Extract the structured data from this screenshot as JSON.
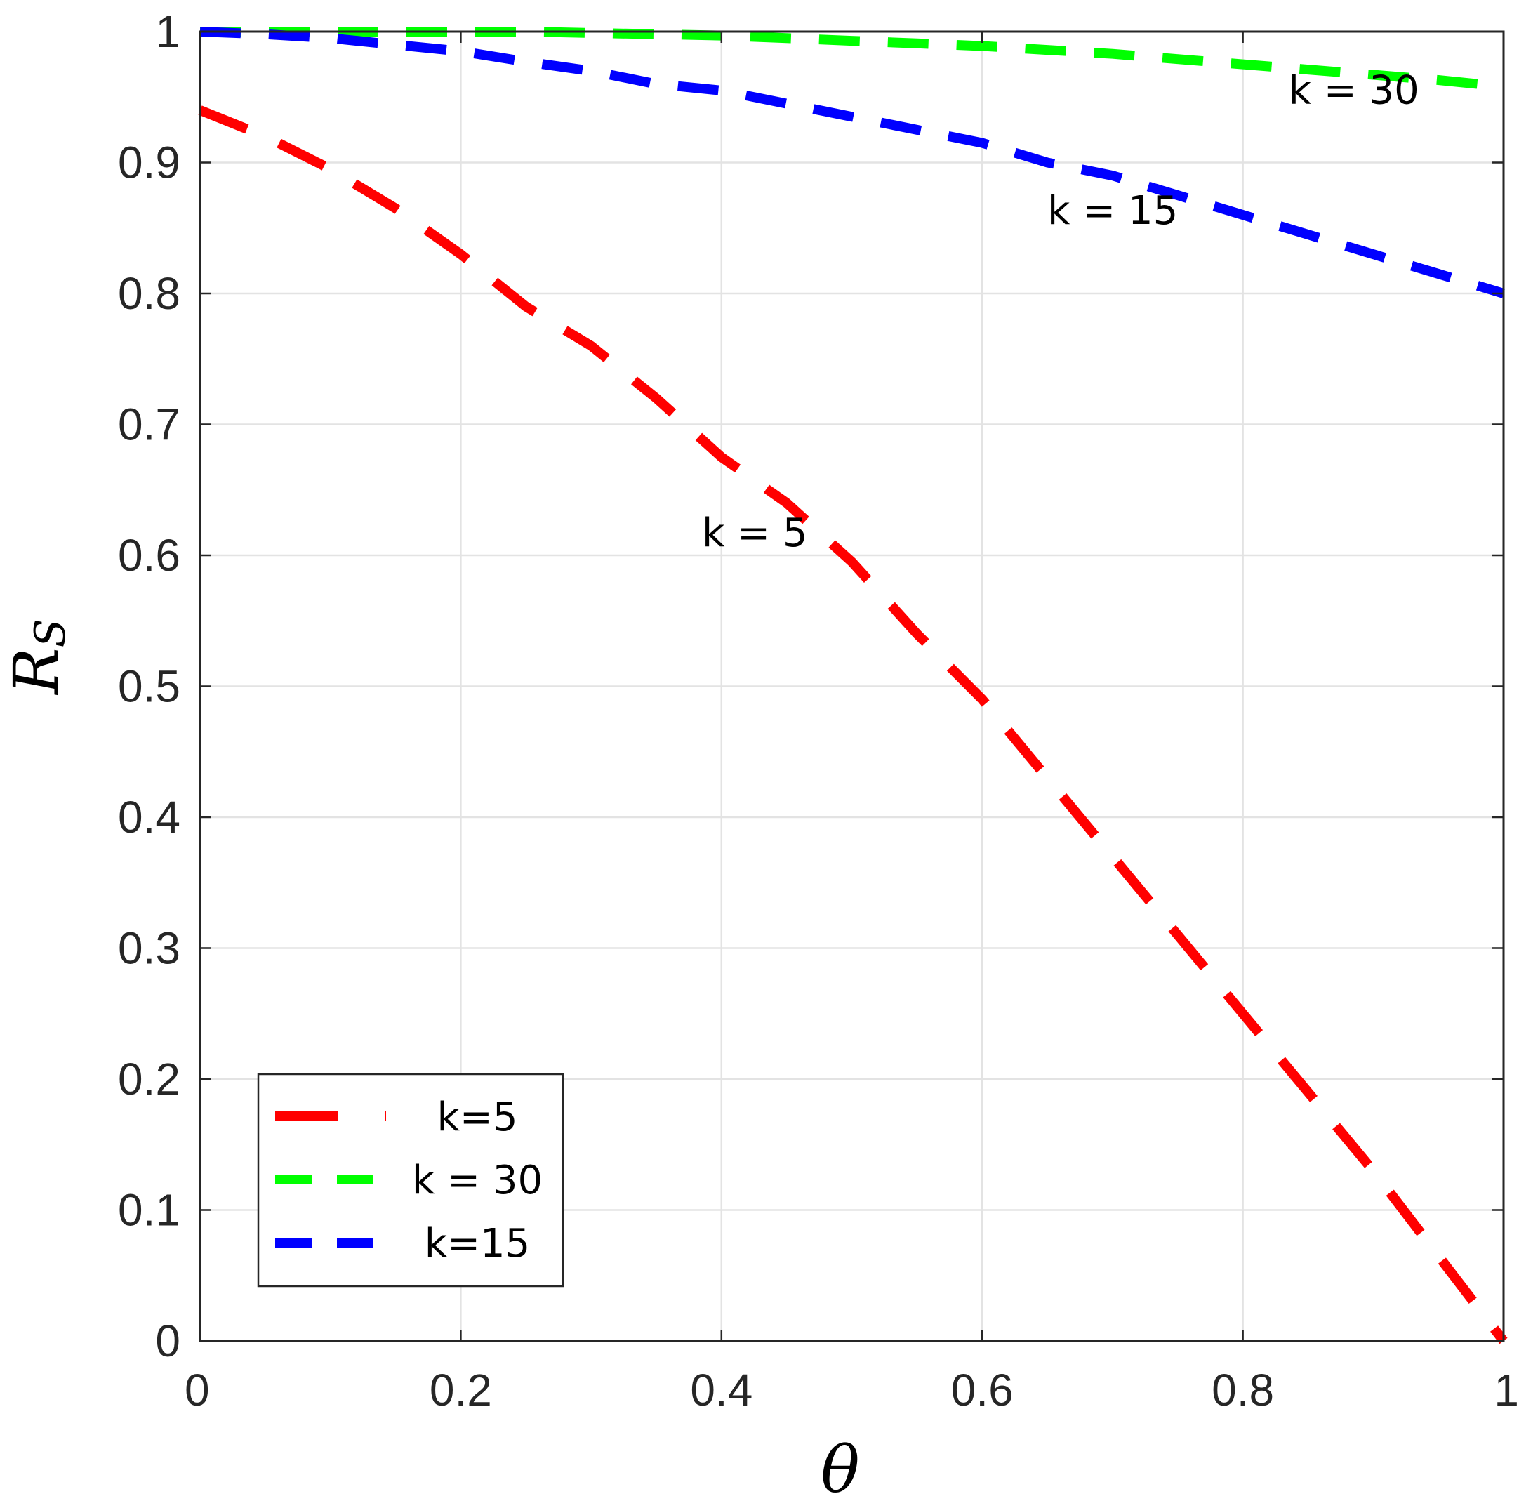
{
  "chart_data": {
    "type": "line",
    "xlabel": "θ",
    "ylabel": "R",
    "ylabel_subscript": "S",
    "xlim": [
      0,
      1
    ],
    "ylim": [
      0,
      1
    ],
    "x_ticks": [
      "0",
      "0.2",
      "0.4",
      "0.6",
      "0.8",
      "1"
    ],
    "y_ticks": [
      "0",
      "0.1",
      "0.2",
      "0.3",
      "0.4",
      "0.5",
      "0.6",
      "0.7",
      "0.8",
      "0.9",
      "1"
    ],
    "grid": true,
    "line_style": "dashed",
    "legend_position": "bottom-left",
    "x": [
      0,
      0.05,
      0.1,
      0.15,
      0.2,
      0.25,
      0.3,
      0.35,
      0.4,
      0.45,
      0.5,
      0.55,
      0.6,
      0.65,
      0.7,
      0.75,
      0.8,
      0.85,
      0.9,
      0.95,
      1
    ],
    "series": [
      {
        "name": "k=5",
        "color": "#ff0000",
        "values": [
          0.94,
          0.92,
          0.895,
          0.865,
          0.83,
          0.79,
          0.76,
          0.72,
          0.675,
          0.64,
          0.595,
          0.54,
          0.49,
          0.43,
          0.37,
          0.31,
          0.25,
          0.19,
          0.13,
          0.065,
          0.0
        ]
      },
      {
        "name": "k = 30",
        "color": "#00ff00",
        "values": [
          1.0,
          1.0,
          1.0,
          1.0,
          1.0,
          1.0,
          0.999,
          0.998,
          0.997,
          0.995,
          0.993,
          0.991,
          0.989,
          0.986,
          0.983,
          0.979,
          0.975,
          0.971,
          0.967,
          0.963,
          0.958
        ]
      },
      {
        "name": "k=15",
        "color": "#0000ff",
        "values": [
          1.0,
          0.998,
          0.995,
          0.99,
          0.985,
          0.977,
          0.97,
          0.96,
          0.955,
          0.945,
          0.935,
          0.925,
          0.915,
          0.9,
          0.89,
          0.875,
          0.86,
          0.845,
          0.83,
          0.815,
          0.8
        ]
      }
    ],
    "annotations": [
      {
        "text": "k = 30",
        "x": 0.835,
        "y": 0.945
      },
      {
        "text": "k = 15",
        "x": 0.65,
        "y": 0.853
      },
      {
        "text": "k = 5",
        "x": 0.385,
        "y": 0.607
      }
    ]
  }
}
